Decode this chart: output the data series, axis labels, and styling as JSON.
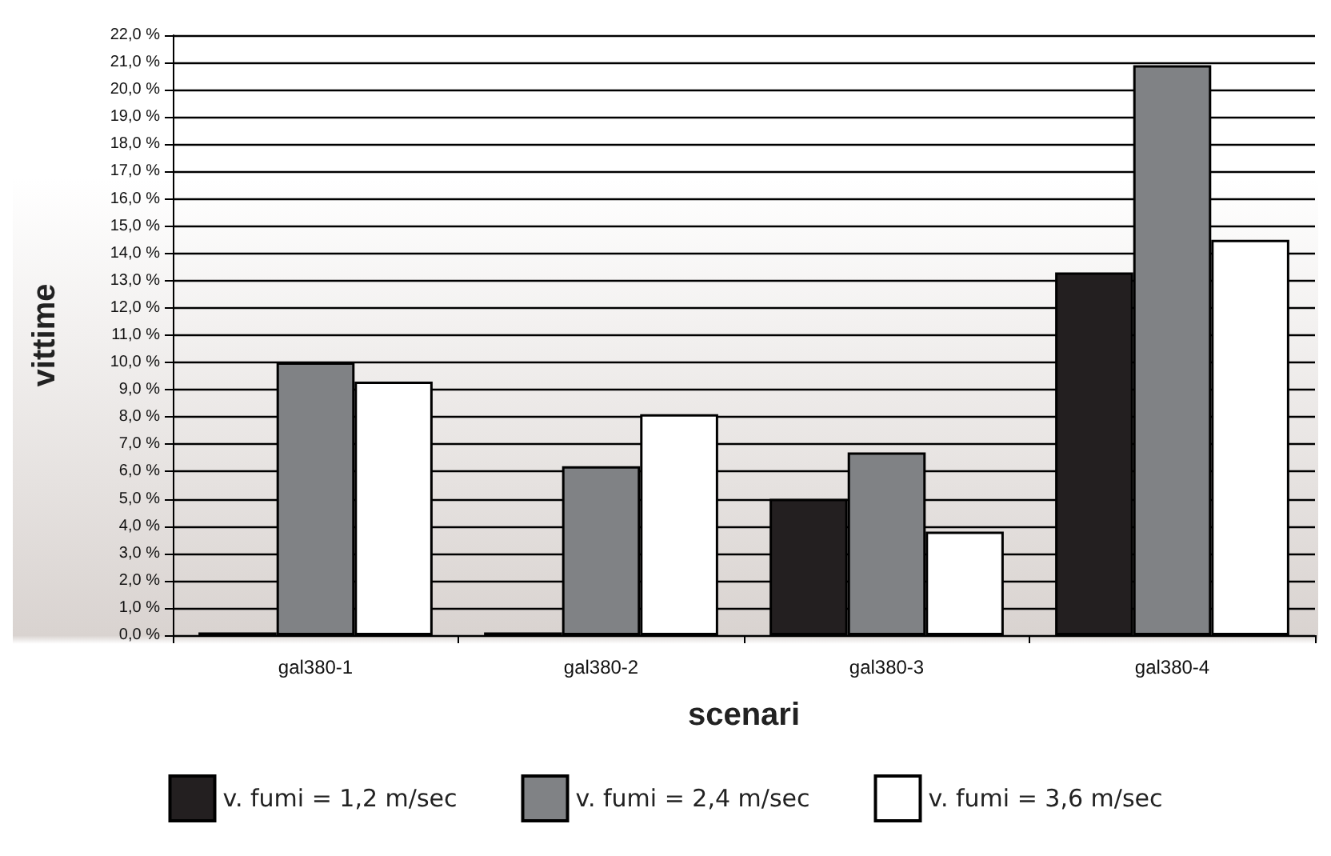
{
  "chart_data": {
    "type": "bar",
    "xlabel": "scenari",
    "ylabel": "vittime",
    "categories": [
      "gal380-1",
      "gal380-2",
      "gal380-3",
      "gal380-4"
    ],
    "series": [
      {
        "name": "v. fumi = 1,2 m/sec",
        "color": "#231f20",
        "values": [
          0.1,
          0.1,
          5.0,
          13.3
        ]
      },
      {
        "name": "v. fumi = 2,4 m/sec",
        "color": "#808285",
        "values": [
          10.0,
          6.2,
          6.7,
          20.9
        ]
      },
      {
        "name": "v. fumi = 3,6 m/sec",
        "color": "#ffffff",
        "values": [
          9.3,
          8.1,
          3.8,
          14.5
        ]
      }
    ],
    "ylim": [
      0,
      22
    ],
    "yticks": [
      {
        "value": 0,
        "label": "0,0 %"
      },
      {
        "value": 1,
        "label": "1,0 %"
      },
      {
        "value": 2,
        "label": "2,0 %"
      },
      {
        "value": 3,
        "label": "3,0 %"
      },
      {
        "value": 4,
        "label": "4,0 %"
      },
      {
        "value": 5,
        "label": "5,0 %"
      },
      {
        "value": 6,
        "label": "6,0 %"
      },
      {
        "value": 7,
        "label": "7,0 %"
      },
      {
        "value": 8,
        "label": "8,0 %"
      },
      {
        "value": 9,
        "label": "9,0 %"
      },
      {
        "value": 10,
        "label": "10,0 %"
      },
      {
        "value": 11,
        "label": "11,0 %"
      },
      {
        "value": 12,
        "label": "12,0 %"
      },
      {
        "value": 13,
        "label": "13,0 %"
      },
      {
        "value": 14,
        "label": "14,0 %"
      },
      {
        "value": 15,
        "label": "15,0 %"
      },
      {
        "value": 16,
        "label": "16,0 %"
      },
      {
        "value": 17,
        "label": "17,0 %"
      },
      {
        "value": 18,
        "label": "18,0 %"
      },
      {
        "value": 19,
        "label": "19,0 %"
      },
      {
        "value": 20,
        "label": "20,0 %"
      },
      {
        "value": 21,
        "label": "21,0 %"
      },
      {
        "value": 22,
        "label": "22,0 %"
      }
    ],
    "grid": "y",
    "legend": "bottom"
  }
}
